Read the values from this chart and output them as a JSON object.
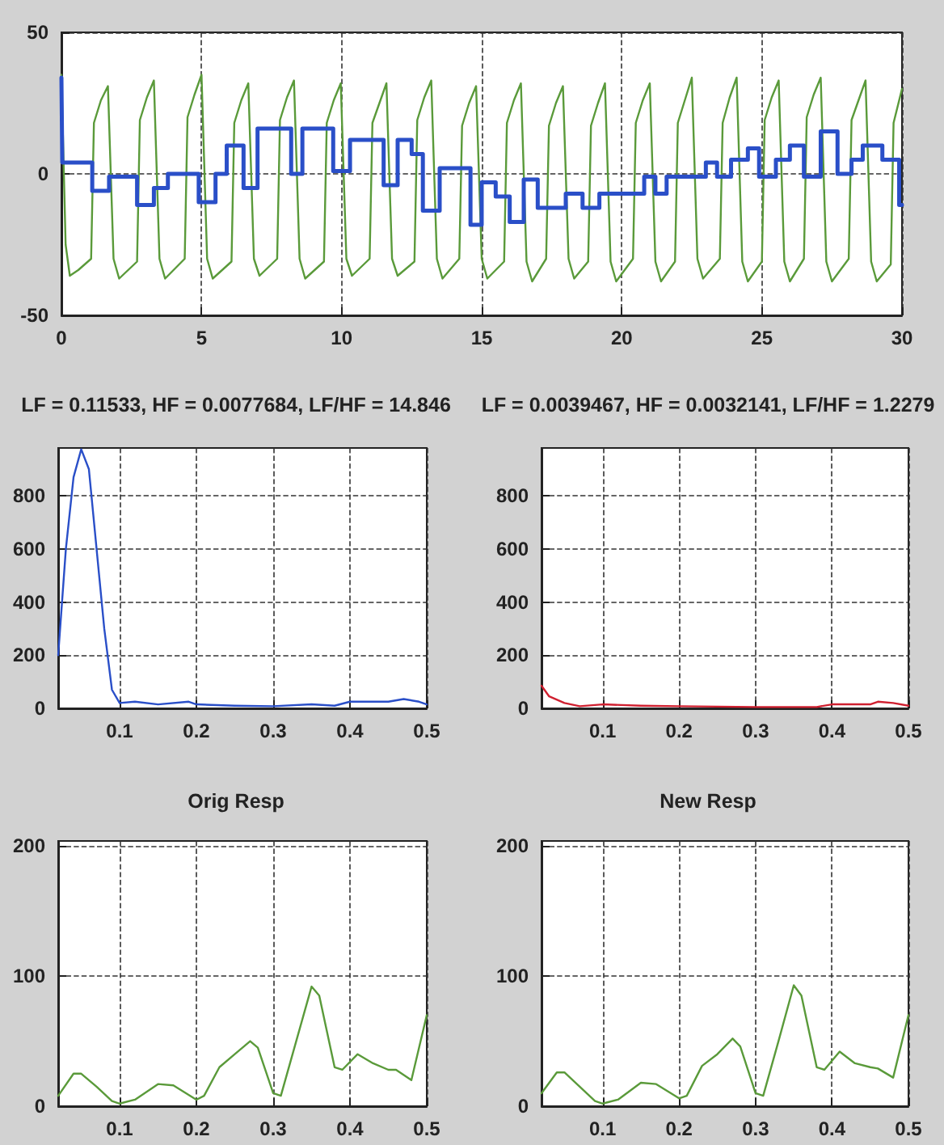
{
  "chart_data": [
    {
      "type": "line",
      "xlim": [
        0,
        30
      ],
      "ylim": [
        -50,
        50
      ],
      "xticks": [
        0,
        5,
        10,
        15,
        20,
        25,
        30
      ],
      "yticks": [
        -50,
        0,
        50
      ],
      "grid": true,
      "marker": "none",
      "line_style": "solid",
      "series": [
        {
          "type": "line",
          "color": "#5a9a3a",
          "x": [
            0,
            0.15,
            0.3,
            0.6,
            1.06,
            1.16,
            1.41,
            1.66,
            1.86,
            2.06,
            2.7,
            2.8,
            3.05,
            3.3,
            3.5,
            3.7,
            4.4,
            4.5,
            4.75,
            5.0,
            5.2,
            5.4,
            6.07,
            6.17,
            6.42,
            6.67,
            6.87,
            7.07,
            7.7,
            7.8,
            8.05,
            8.3,
            8.5,
            8.7,
            9.37,
            9.47,
            9.72,
            9.97,
            10.17,
            10.37,
            11.0,
            11.1,
            11.35,
            11.6,
            11.8,
            12.0,
            12.6,
            12.7,
            12.95,
            13.2,
            13.4,
            13.6,
            14.2,
            14.3,
            14.55,
            14.8,
            15.0,
            15.2,
            15.8,
            15.9,
            16.15,
            16.4,
            16.6,
            16.8,
            17.3,
            17.4,
            17.65,
            17.9,
            18.1,
            18.3,
            18.8,
            18.9,
            19.15,
            19.4,
            19.6,
            19.8,
            20.4,
            20.5,
            20.75,
            21.0,
            21.2,
            21.4,
            21.9,
            22.0,
            22.25,
            22.5,
            22.7,
            22.9,
            23.5,
            23.6,
            23.85,
            24.1,
            24.3,
            24.5,
            25.0,
            25.1,
            25.35,
            25.6,
            25.8,
            26.0,
            26.5,
            26.6,
            26.85,
            27.1,
            27.3,
            27.5,
            28.1,
            28.2,
            28.45,
            28.7,
            28.9,
            29.1,
            29.6,
            29.7,
            30
          ],
          "values": [
            35,
            -25,
            -36,
            -34,
            -30,
            18,
            26,
            31,
            -30,
            -37,
            -31,
            19,
            27,
            33,
            -30,
            -37,
            -30,
            20,
            28,
            35,
            -30,
            -37,
            -31,
            18,
            26,
            32,
            -30,
            -36,
            -30,
            19,
            27,
            33,
            -30,
            -37,
            -31,
            18,
            26,
            32,
            -30,
            -36,
            -30,
            18,
            25,
            32,
            -30,
            -36,
            -31,
            19,
            27,
            33,
            -30,
            -37,
            -30,
            17,
            25,
            31,
            -30,
            -37,
            -31,
            18,
            26,
            32,
            -31,
            -38,
            -30,
            17,
            25,
            31,
            -30,
            -37,
            -31,
            17,
            25,
            32,
            -31,
            -38,
            -30,
            18,
            26,
            32,
            -31,
            -38,
            -31,
            18,
            26,
            34,
            -30,
            -37,
            -30,
            18,
            27,
            34,
            -31,
            -38,
            -31,
            19,
            27,
            33,
            -31,
            -38,
            -30,
            20,
            28,
            34,
            -31,
            -38,
            -30,
            19,
            26,
            33,
            -31,
            -38,
            -32,
            18,
            30
          ]
        },
        {
          "type": "step",
          "color": "#2a4fc8",
          "x": [
            0,
            0.03,
            1.1,
            1.7,
            2.7,
            3.3,
            3.8,
            4.9,
            5.5,
            5.9,
            6.5,
            7.0,
            8.2,
            8.6,
            9.7,
            10.3,
            11.5,
            12.0,
            12.5,
            12.9,
            13.5,
            14.6,
            15.0,
            15.5,
            16.0,
            16.5,
            17.0,
            18.0,
            18.6,
            19.2,
            20.8,
            21.2,
            21.6,
            23.0,
            23.4,
            23.9,
            24.5,
            24.9,
            25.5,
            26.0,
            26.5,
            27.1,
            27.7,
            28.2,
            28.6,
            29.3,
            29.9,
            30
          ],
          "values": [
            34,
            4,
            -6,
            -1,
            -11,
            -5,
            0,
            -10,
            0,
            10,
            -5,
            16,
            0,
            16,
            1,
            12,
            -4,
            12,
            7,
            -13,
            2,
            -18,
            -3,
            -8,
            -17,
            -2,
            -12,
            -7,
            -12,
            -7,
            -1,
            -7,
            -1,
            4,
            -1,
            5,
            9,
            -1,
            5,
            10,
            -1,
            15,
            0,
            5,
            10,
            5,
            -11,
            -11
          ]
        }
      ]
    },
    {
      "type": "line",
      "title": "LF = 0.11533, HF = 0.0077684, LF/HF = 14.846",
      "xlim": [
        0.02,
        0.5
      ],
      "ylim": [
        0,
        980
      ],
      "xticks": [
        0.1,
        0.2,
        0.3,
        0.4,
        0.5
      ],
      "yticks": [
        0,
        200,
        400,
        600,
        800
      ],
      "grid": true,
      "marker": "none",
      "line_style": "solid",
      "series": [
        {
          "color": "#2a4fc8",
          "x": [
            0.02,
            0.03,
            0.04,
            0.05,
            0.06,
            0.07,
            0.08,
            0.09,
            0.1,
            0.12,
            0.15,
            0.19,
            0.2,
            0.25,
            0.3,
            0.35,
            0.38,
            0.4,
            0.45,
            0.47,
            0.49,
            0.5
          ],
          "values": [
            200,
            600,
            870,
            975,
            900,
            600,
            300,
            70,
            20,
            25,
            15,
            25,
            15,
            10,
            8,
            15,
            10,
            25,
            25,
            35,
            25,
            15
          ]
        }
      ]
    },
    {
      "type": "line",
      "title": "LF = 0.0039467, HF = 0.0032141, LF/HF = 1.2279",
      "xlim": [
        0.02,
        0.5
      ],
      "ylim": [
        0,
        980
      ],
      "xticks": [
        0.1,
        0.2,
        0.3,
        0.4,
        0.5
      ],
      "yticks": [
        0,
        200,
        400,
        600,
        800
      ],
      "grid": true,
      "marker": "none",
      "line_style": "solid",
      "series": [
        {
          "color": "#d02030",
          "x": [
            0.02,
            0.03,
            0.05,
            0.07,
            0.1,
            0.15,
            0.2,
            0.3,
            0.38,
            0.4,
            0.45,
            0.46,
            0.48,
            0.5
          ],
          "values": [
            85,
            45,
            20,
            8,
            15,
            10,
            8,
            5,
            5,
            15,
            15,
            25,
            20,
            10
          ]
        }
      ]
    },
    {
      "type": "line",
      "title": "Orig Resp",
      "xlim": [
        0.02,
        0.5
      ],
      "ylim": [
        0,
        204
      ],
      "xticks": [
        0.1,
        0.2,
        0.3,
        0.4,
        0.5
      ],
      "yticks": [
        0,
        100,
        200
      ],
      "grid": true,
      "marker": "none",
      "line_style": "solid",
      "series": [
        {
          "color": "#5a9a3a",
          "x": [
            0.02,
            0.04,
            0.05,
            0.07,
            0.09,
            0.1,
            0.12,
            0.15,
            0.17,
            0.2,
            0.21,
            0.23,
            0.25,
            0.27,
            0.28,
            0.3,
            0.31,
            0.33,
            0.35,
            0.36,
            0.38,
            0.39,
            0.41,
            0.43,
            0.45,
            0.46,
            0.48,
            0.5
          ],
          "values": [
            8,
            25,
            25,
            15,
            4,
            2,
            5,
            17,
            16,
            5,
            8,
            30,
            40,
            50,
            45,
            10,
            8,
            50,
            92,
            85,
            30,
            28,
            40,
            33,
            28,
            28,
            20,
            70
          ]
        }
      ]
    },
    {
      "type": "line",
      "title": "New Resp",
      "xlim": [
        0.02,
        0.5
      ],
      "ylim": [
        0,
        204
      ],
      "xticks": [
        0.1,
        0.2,
        0.3,
        0.4,
        0.5
      ],
      "yticks": [
        0,
        100,
        200
      ],
      "grid": true,
      "marker": "none",
      "line_style": "solid",
      "series": [
        {
          "color": "#5a9a3a",
          "x": [
            0.02,
            0.04,
            0.05,
            0.07,
            0.09,
            0.1,
            0.12,
            0.15,
            0.17,
            0.2,
            0.21,
            0.23,
            0.25,
            0.27,
            0.28,
            0.3,
            0.31,
            0.33,
            0.35,
            0.36,
            0.38,
            0.39,
            0.41,
            0.43,
            0.45,
            0.46,
            0.48,
            0.5
          ],
          "values": [
            10,
            26,
            26,
            15,
            4,
            2,
            5,
            18,
            17,
            6,
            8,
            31,
            40,
            52,
            46,
            10,
            8,
            50,
            93,
            85,
            30,
            28,
            42,
            33,
            30,
            29,
            22,
            70
          ]
        }
      ]
    }
  ]
}
